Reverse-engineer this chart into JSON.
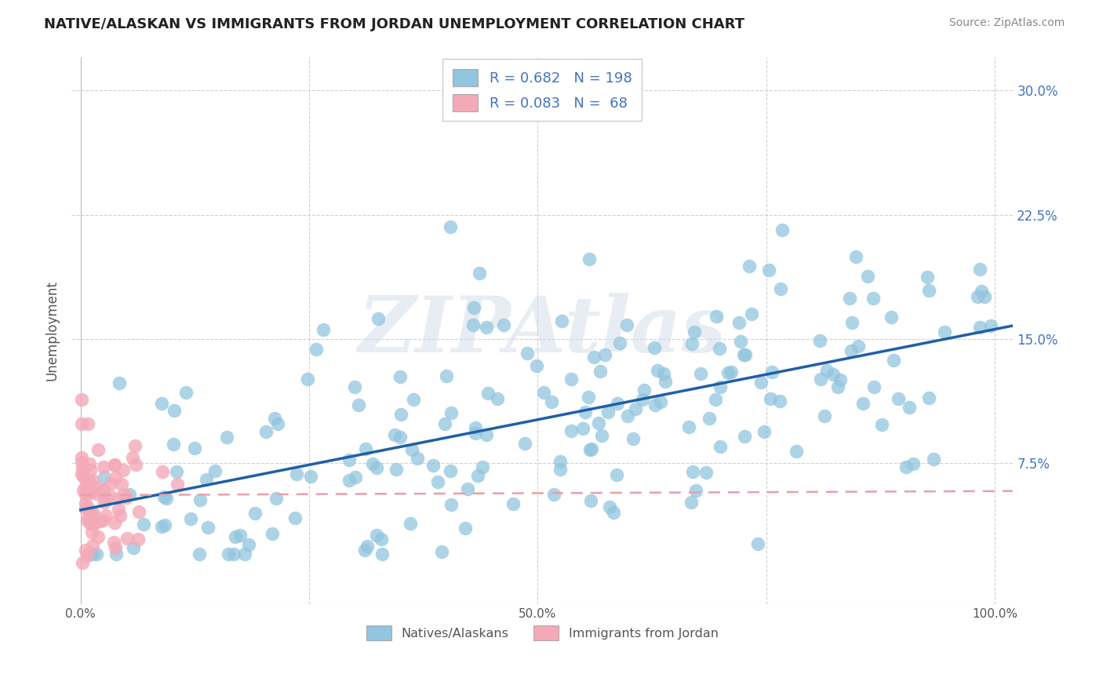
{
  "title": "NATIVE/ALASKAN VS IMMIGRANTS FROM JORDAN UNEMPLOYMENT CORRELATION CHART",
  "source": "Source: ZipAtlas.com",
  "xlabel": "",
  "ylabel": "Unemployment",
  "xlim": [
    -0.01,
    1.02
  ],
  "ylim": [
    -0.01,
    0.32
  ],
  "xticks": [
    0.0,
    0.25,
    0.5,
    0.75,
    1.0
  ],
  "xtick_labels": [
    "0.0%",
    "",
    "50.0%",
    "",
    "100.0%"
  ],
  "ytick_labels": [
    "7.5%",
    "15.0%",
    "22.5%",
    "30.0%"
  ],
  "yticks": [
    0.075,
    0.15,
    0.225,
    0.3
  ],
  "blue_color": "#92c5de",
  "pink_color": "#f4a9b8",
  "blue_line_color": "#1f5fa6",
  "pink_line_color": "#e8a0a8",
  "axis_color": "#4472c4",
  "R_blue": 0.682,
  "N_blue": 198,
  "R_pink": 0.083,
  "N_pink": 68,
  "legend_label_blue": "Natives/Alaskans",
  "legend_label_pink": "Immigrants from Jordan",
  "watermark": "ZIPAtlas",
  "background_color": "#ffffff",
  "plot_bg_color": "#ffffff",
  "grid_color": "#cccccc",
  "title_color": "#222222",
  "source_color": "#888888",
  "ylabel_color": "#555555"
}
